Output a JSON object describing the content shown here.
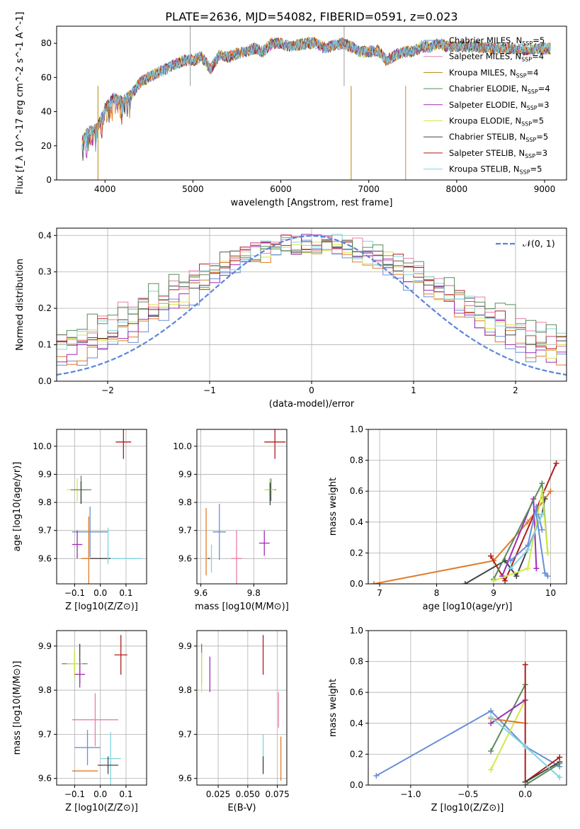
{
  "figure": {
    "title": "PLATE=2636, MJD=54082, FIBERID=0591, z=0.023"
  },
  "colors": {
    "Chabrier MILES": "#6a8fd8",
    "Salpeter MILES": "#e87ea8",
    "Kroupa MILES": "#b8860b",
    "Chabrier ELODIE": "#5c8a5c",
    "Salpeter ELODIE": "#a02cb8",
    "Kroupa ELODIE": "#d4e84a",
    "Chabrier STELIB": "#444444",
    "Salpeter STELIB": "#b01c1c",
    "Kroupa STELIB": "#80d4e0",
    "orange": "#e07b28",
    "norm": "#5b86d8"
  },
  "chart_data": [
    {
      "id": "spectrum",
      "type": "line",
      "title": "PLATE=2636, MJD=54082, FIBERID=0591, z=0.023",
      "xlabel": "wavelength [Angstrom, rest frame]",
      "ylabel": "Flux [f_λ 10^-17 erg cm^-2 s^-1 A^-1]",
      "xlim": [
        3450,
        9250
      ],
      "ylim": [
        0,
        90
      ],
      "xticks": [
        4000,
        5000,
        6000,
        7000,
        8000,
        9000
      ],
      "yticks": [
        0,
        20,
        40,
        60,
        80
      ],
      "legend": "top-right",
      "grid": false,
      "series": [
        {
          "name": "Chabrier MILES, N_SSP=5"
        },
        {
          "name": "Salpeter MILES, N_SSP=4"
        },
        {
          "name": "Kroupa MILES, N_SSP=4"
        },
        {
          "name": "Chabrier ELODIE, N_SSP=4"
        },
        {
          "name": "Salpeter ELODIE, N_SSP=3"
        },
        {
          "name": "Kroupa ELODIE, N_SSP=5"
        },
        {
          "name": "Chabrier STELIB, N_SSP=5"
        },
        {
          "name": "Salpeter STELIB, N_SSP=3"
        },
        {
          "name": "Kroupa STELIB, N_SSP=5"
        }
      ],
      "envelope": {
        "x": [
          3740,
          3800,
          3900,
          3950,
          4000,
          4100,
          4200,
          4300,
          4400,
          4500,
          4600,
          4700,
          4800,
          4900,
          5000,
          5100,
          5200,
          5300,
          5400,
          5500,
          5600,
          5700,
          5800,
          5900,
          6000,
          6100,
          6200,
          6300,
          6400,
          6500,
          6600,
          6700,
          6800,
          6900,
          7000,
          7100,
          7200,
          7300,
          7400,
          7500,
          7600,
          7700,
          7800,
          7900,
          8000,
          8200,
          8400,
          8600,
          8800,
          9000,
          9070
        ],
        "y": [
          22,
          28,
          30,
          35,
          42,
          48,
          46,
          50,
          57,
          60,
          63,
          65,
          68,
          70,
          70,
          72,
          65,
          73,
          72,
          74,
          75,
          77,
          75,
          80,
          80,
          78,
          79,
          80,
          80,
          77,
          79,
          80,
          78,
          75,
          75,
          76,
          70,
          73,
          75,
          75,
          78,
          78,
          80,
          78,
          78,
          78,
          77,
          77,
          76,
          77,
          77
        ]
      }
    },
    {
      "id": "residuals",
      "type": "line",
      "xlabel": "(data-model)/error",
      "ylabel": "Normed distribution",
      "xlim": [
        -2.5,
        2.5
      ],
      "ylim": [
        0,
        0.42
      ],
      "xticks": [
        -2,
        -1,
        0,
        1,
        2
      ],
      "yticks": [
        0.0,
        0.1,
        0.2,
        0.3,
        0.4
      ],
      "legend": "top-right",
      "legend_label": "𝒩(0, 1)",
      "grid": true
    },
    {
      "id": "age-vs-Z",
      "type": "scatter",
      "xlabel": "Z [log10(Z/Z⊙)]",
      "ylabel": "age  [log10(age/yr)]",
      "xlim": [
        -0.17,
        0.18
      ],
      "ylim": [
        9.51,
        10.06
      ],
      "xticks": [
        -0.1,
        0.0,
        0.1
      ],
      "xticklabels": [
        "−0.1",
        "0.0",
        "0.1"
      ],
      "yticks": [
        9.6,
        9.7,
        9.8,
        9.9,
        10.0
      ],
      "grid": true,
      "points": [
        {
          "x": 0.09,
          "y": 10.015,
          "xerr": 0.03,
          "yerr": 0.06,
          "c": "Salpeter STELIB"
        },
        {
          "x": -0.09,
          "y": 9.845,
          "xerr": 0.04,
          "yerr": 0.04,
          "c": "Kroupa ELODIE"
        },
        {
          "x": -0.075,
          "y": 9.845,
          "xerr": 0.04,
          "yerr": 0.05,
          "c": "Chabrier ELODIE"
        },
        {
          "x": -0.075,
          "y": 9.835,
          "xerr": 0.0,
          "yerr": 0.04,
          "c": "Chabrier STELIB"
        },
        {
          "x": -0.04,
          "y": 9.695,
          "xerr": 0.07,
          "yerr": 0.09,
          "c": "Chabrier MILES"
        },
        {
          "x": 0.03,
          "y": 9.66,
          "xerr": 0.0,
          "yerr": 0.05,
          "c": "Kroupa STELIB"
        },
        {
          "x": -0.09,
          "y": 9.65,
          "xerr": 0.02,
          "yerr": 0.05,
          "c": "Salpeter ELODIE"
        },
        {
          "x": -0.045,
          "y": 9.6,
          "xerr": 0.03,
          "yerr": 0.15,
          "c": "orange"
        },
        {
          "x": 0.0,
          "y": 9.6,
          "xerr": 0.04,
          "yerr": 0.0,
          "c": "Chabrier STELIB"
        },
        {
          "x": 0.1,
          "y": 9.6,
          "xerr": 0.06,
          "yerr": 0.0,
          "c": "Kroupa STELIB"
        },
        {
          "x": 0.03,
          "y": 9.6,
          "xerr": 0.0,
          "yerr": 0.02,
          "c": "Kroupa STELIB"
        }
      ]
    },
    {
      "id": "age-vs-mass",
      "type": "scatter",
      "xlabel": "mass [log10(M/M⊙)]",
      "xlim": [
        9.585,
        9.925
      ],
      "ylim": [
        9.51,
        10.06
      ],
      "xticks": [
        9.6,
        9.8
      ],
      "yticks": [
        9.6,
        9.7,
        9.8,
        9.9,
        10.0
      ],
      "grid": true,
      "points": [
        {
          "x": 9.88,
          "y": 10.015,
          "xerr": 0.04,
          "yerr": 0.06,
          "c": "Salpeter STELIB"
        },
        {
          "x": 9.865,
          "y": 9.845,
          "xerr": 0.02,
          "yerr": 0.04,
          "c": "Chabrier ELODIE"
        },
        {
          "x": 9.86,
          "y": 9.845,
          "xerr": 0.02,
          "yerr": 0.04,
          "c": "Kroupa ELODIE"
        },
        {
          "x": 9.862,
          "y": 9.83,
          "xerr": 0.0,
          "yerr": 0.04,
          "c": "Chabrier STELIB"
        },
        {
          "x": 9.84,
          "y": 9.655,
          "xerr": 0.02,
          "yerr": 0.045,
          "c": "Salpeter ELODIE"
        },
        {
          "x": 9.67,
          "y": 9.695,
          "xerr": 0.025,
          "yerr": 0.1,
          "c": "Chabrier MILES"
        },
        {
          "x": 9.62,
          "y": 9.66,
          "xerr": 0.0,
          "yerr": 0.12,
          "c": "orange"
        },
        {
          "x": 9.735,
          "y": 9.6,
          "xerr": 0.02,
          "yerr": 0.1,
          "c": "Salpeter MILES"
        },
        {
          "x": 9.64,
          "y": 9.6,
          "xerr": 0.0,
          "yerr": 0.05,
          "c": "Kroupa STELIB"
        },
        {
          "x": 9.63,
          "y": 9.6,
          "xerr": 0.005,
          "yerr": 0.0,
          "c": "Chabrier STELIB"
        }
      ]
    },
    {
      "id": "mass-weight-vs-age",
      "type": "line",
      "xlabel": "age  [log10(age/yr)]",
      "ylabel": "mass weight",
      "xlim": [
        6.8,
        10.28
      ],
      "ylim": [
        0,
        1.0
      ],
      "xticks": [
        7,
        8,
        9,
        10
      ],
      "yticks": [
        0.0,
        0.2,
        0.4,
        0.6,
        0.8,
        1.0
      ],
      "grid": true,
      "series": [
        {
          "c": "orange",
          "x": [
            6.9,
            9.0,
            9.6,
            10.0
          ],
          "y": [
            0.0,
            0.15,
            0.4,
            0.6
          ]
        },
        {
          "c": "Chabrier STELIB",
          "x": [
            8.5,
            9.2,
            9.4,
            9.85,
            9.9
          ],
          "y": [
            0.0,
            0.15,
            0.05,
            0.45,
            0.55
          ]
        },
        {
          "c": "Salpeter STELIB",
          "x": [
            8.95,
            9.2,
            10.1
          ],
          "y": [
            0.18,
            0.02,
            0.78
          ]
        },
        {
          "c": "Salpeter ELODIE",
          "x": [
            9.15,
            9.7,
            9.75
          ],
          "y": [
            0.05,
            0.55,
            0.1
          ]
        },
        {
          "c": "Chabrier MILES",
          "x": [
            9.3,
            9.6,
            9.75,
            9.85
          ],
          "y": [
            0.15,
            0.25,
            0.5,
            0.35
          ]
        },
        {
          "c": "Chabrier ELODIE",
          "x": [
            9.0,
            9.85,
            9.95
          ],
          "y": [
            0.03,
            0.65,
            0.2
          ]
        },
        {
          "c": "Kroupa ELODIE",
          "x": [
            9.0,
            9.6,
            9.85,
            9.95
          ],
          "y": [
            0.02,
            0.1,
            0.6,
            0.2
          ]
        },
        {
          "c": "Kroupa STELIB",
          "x": [
            9.3,
            9.6,
            9.85
          ],
          "y": [
            0.1,
            0.22,
            0.45
          ]
        },
        {
          "c": "Chabrier MILES",
          "x": [
            9.75,
            9.9,
            9.95
          ],
          "y": [
            0.45,
            0.07,
            0.05
          ]
        }
      ]
    },
    {
      "id": "mass-vs-Z",
      "type": "scatter",
      "xlabel": "Z [log10(Z/Z⊙)]",
      "ylabel": "mass [log10(M/M⊙)]",
      "xlim": [
        -0.17,
        0.18
      ],
      "ylim": [
        9.585,
        9.935
      ],
      "xticks": [
        -0.1,
        0.0,
        0.1
      ],
      "xticklabels": [
        "−0.1",
        "0.0",
        "0.1"
      ],
      "yticks": [
        9.6,
        9.7,
        9.8,
        9.9
      ],
      "grid": true,
      "points": [
        {
          "x": 0.08,
          "y": 9.88,
          "xerr": 0.025,
          "yerr": 0.045,
          "c": "Salpeter STELIB"
        },
        {
          "x": -0.1,
          "y": 9.86,
          "xerr": 0.05,
          "yerr": 0.03,
          "c": "Chabrier ELODIE"
        },
        {
          "x": -0.1,
          "y": 9.86,
          "xerr": 0.03,
          "yerr": 0.03,
          "c": "Kroupa ELODIE"
        },
        {
          "x": -0.08,
          "y": 9.86,
          "xerr": 0.0,
          "yerr": 0.045,
          "c": "Chabrier STELIB"
        },
        {
          "x": -0.08,
          "y": 9.836,
          "xerr": 0.02,
          "yerr": 0.03,
          "c": "Salpeter ELODIE"
        },
        {
          "x": -0.02,
          "y": 9.733,
          "xerr": 0.09,
          "yerr": 0.06,
          "c": "Salpeter MILES"
        },
        {
          "x": -0.05,
          "y": 9.67,
          "xerr": 0.05,
          "yerr": 0.04,
          "c": "Chabrier MILES"
        },
        {
          "x": 0.04,
          "y": 9.645,
          "xerr": 0.04,
          "yerr": 0.06,
          "c": "Kroupa STELIB"
        },
        {
          "x": 0.03,
          "y": 9.63,
          "xerr": 0.04,
          "yerr": 0.02,
          "c": "Chabrier STELIB"
        },
        {
          "x": -0.06,
          "y": 9.617,
          "xerr": 0.05,
          "yerr": 0.0,
          "c": "orange"
        }
      ]
    },
    {
      "id": "mass-vs-ebv",
      "type": "scatter",
      "xlabel": "E(B-V)",
      "xlim": [
        0.007,
        0.083
      ],
      "ylim": [
        9.585,
        9.935
      ],
      "xticks": [
        0.025,
        0.05,
        0.075
      ],
      "xticklabels": [
        "0.025",
        "0.050",
        "0.075"
      ],
      "yticks": [
        9.6,
        9.7,
        9.8,
        9.9
      ],
      "grid": true,
      "points": [
        {
          "x": 0.011,
          "y": 9.86,
          "xerr": 0.0,
          "yerr": 0.045,
          "c": "Chabrier ELODIE"
        },
        {
          "x": 0.011,
          "y": 9.84,
          "xerr": 0.0,
          "yerr": 0.045,
          "c": "Kroupa ELODIE"
        },
        {
          "x": 0.018,
          "y": 9.836,
          "xerr": 0.0,
          "yerr": 0.04,
          "c": "Salpeter ELODIE"
        },
        {
          "x": 0.063,
          "y": 9.88,
          "xerr": 0.0,
          "yerr": 0.045,
          "c": "Salpeter STELIB"
        },
        {
          "x": 0.076,
          "y": 9.755,
          "xerr": 0.0,
          "yerr": 0.04,
          "c": "Salpeter MILES"
        },
        {
          "x": 0.063,
          "y": 9.66,
          "xerr": 0.0,
          "yerr": 0.04,
          "c": "Kroupa STELIB"
        },
        {
          "x": 0.063,
          "y": 9.63,
          "xerr": 0.0,
          "yerr": 0.02,
          "c": "Chabrier STELIB"
        },
        {
          "x": 0.078,
          "y": 9.645,
          "xerr": 0.0,
          "yerr": 0.05,
          "c": "orange"
        }
      ]
    },
    {
      "id": "mass-weight-vs-Z",
      "type": "line",
      "xlabel": "Z [log10(Z/Z⊙)]",
      "ylabel": "mass weight",
      "xlim": [
        -1.37,
        0.36
      ],
      "ylim": [
        0,
        1.0
      ],
      "xticks": [
        -1.0,
        -0.5,
        0.0
      ],
      "xticklabels": [
        "−1.0",
        "−0.5",
        "0.0"
      ],
      "yticks": [
        0.0,
        0.2,
        0.4,
        0.6,
        0.8,
        1.0
      ],
      "grid": true,
      "series": [
        {
          "c": "Chabrier MILES",
          "x": [
            -1.3,
            -0.3,
            0.0,
            0.3
          ],
          "y": [
            0.06,
            0.48,
            0.25,
            0.12
          ]
        },
        {
          "c": "Kroupa ELODIE",
          "x": [
            -0.3,
            0.0
          ],
          "y": [
            0.1,
            0.55
          ]
        },
        {
          "c": "Chabrier ELODIE",
          "x": [
            -0.3,
            0.0
          ],
          "y": [
            0.22,
            0.65
          ]
        },
        {
          "c": "Salpeter ELODIE",
          "x": [
            -0.3,
            0.0
          ],
          "y": [
            0.4,
            0.55
          ]
        },
        {
          "c": "orange",
          "x": [
            -0.3,
            0.0
          ],
          "y": [
            0.43,
            0.4
          ]
        },
        {
          "c": "Salpeter STELIB",
          "x": [
            0.0,
            0.0,
            0.3
          ],
          "y": [
            0.78,
            0.02,
            0.18
          ]
        },
        {
          "c": "Chabrier STELIB",
          "x": [
            0.0,
            0.3
          ],
          "y": [
            0.02,
            0.15
          ]
        },
        {
          "c": "Kroupa STELIB",
          "x": [
            -0.3,
            0.0,
            0.3
          ],
          "y": [
            0.44,
            0.25,
            0.05
          ]
        },
        {
          "c": "Chabrier ELODIE",
          "x": [
            0.0,
            0.3
          ],
          "y": [
            0.0,
            0.14
          ]
        }
      ]
    }
  ]
}
